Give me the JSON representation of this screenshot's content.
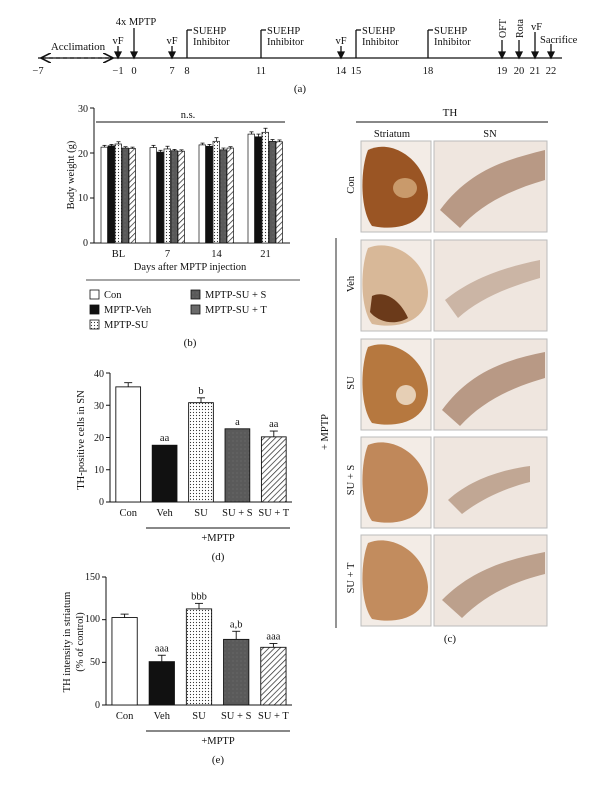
{
  "panel_a": {
    "label": "(a)",
    "acclimation": "Acclimation",
    "ticks": [
      "−7",
      "−1",
      "0",
      "7",
      "8",
      "11",
      "14",
      "15",
      "18",
      "19",
      "20",
      "21",
      "22"
    ],
    "events": {
      "vf1": "vF",
      "mptp": "4x MPTP",
      "vf7": "vF",
      "suehp8_1": "SUEHP",
      "suehp8_2": "Inhibitor",
      "suehp11_1": "SUEHP",
      "suehp11_2": "Inhibitor",
      "vf14": "vF",
      "suehp15_1": "SUEHP",
      "suehp15_2": "Inhibitor",
      "suehp18_1": "SUEHP",
      "suehp18_2": "Inhibitor",
      "oft": "OFT",
      "rota": "Rota",
      "vf21": "vF",
      "sacrifice": "Sacrifice"
    }
  },
  "panel_b": {
    "label": "(b)",
    "legend": [
      "Con",
      "MPTP-Veh",
      "MPTP-SU",
      "MPTP-SU + S",
      "MPTP-SU + T"
    ],
    "significance": "n.s.",
    "yticks": [
      "0",
      "10",
      "20",
      "30"
    ],
    "chart_data": {
      "type": "bar",
      "categories": [
        "BL",
        "7",
        "14",
        "21"
      ],
      "series": [
        {
          "name": "Con",
          "values": [
            21.3,
            21.2,
            21.8,
            24.2
          ],
          "errors": [
            0.4,
            0.5,
            0.4,
            0.5
          ]
        },
        {
          "name": "MPTP-Veh",
          "values": [
            21.6,
            20.2,
            21.5,
            23.6
          ],
          "errors": [
            0.3,
            0.4,
            0.4,
            0.6
          ]
        },
        {
          "name": "MPTP-SU",
          "values": [
            22.0,
            20.9,
            22.6,
            24.6
          ],
          "errors": [
            0.5,
            0.6,
            0.8,
            0.9
          ]
        },
        {
          "name": "MPTP-SU + S",
          "values": [
            21.1,
            20.5,
            20.7,
            22.6
          ],
          "errors": [
            0.3,
            0.3,
            0.4,
            0.4
          ]
        },
        {
          "name": "MPTP-SU + T",
          "values": [
            21.0,
            20.4,
            21.1,
            22.5
          ],
          "errors": [
            0.3,
            0.3,
            0.3,
            0.4
          ]
        }
      ],
      "ylabel": "Body weight (g)",
      "xlabel": "Days after MPTP injection",
      "ylim": [
        0,
        30
      ]
    }
  },
  "panel_c": {
    "label": "(c)",
    "header": "TH",
    "col_labels": [
      "Striatum",
      "SN"
    ],
    "row_labels": [
      "Con",
      "Veh",
      "SU",
      "SU + S",
      "SU + T"
    ],
    "group_label": "+ MPTP"
  },
  "panel_d": {
    "label": "(d)",
    "group_label": "+MPTP",
    "yticks": [
      "0",
      "10",
      "20",
      "30",
      "40"
    ],
    "chart_data": {
      "type": "bar",
      "categories": [
        "Con",
        "Veh",
        "SU",
        "SU + S",
        "SU + T"
      ],
      "values": [
        35.7,
        17.6,
        30.8,
        22.7,
        20.2
      ],
      "errors": [
        1.3,
        0,
        1.5,
        0,
        1.8
      ],
      "annotations": [
        "",
        "aa",
        "b",
        "a",
        "aa"
      ],
      "ylabel": "TH-positive cells in SN",
      "ylim": [
        0,
        40
      ]
    }
  },
  "panel_e": {
    "label": "(e)",
    "group_label": "+MPTP",
    "yticks": [
      "0",
      "50",
      "100",
      "150"
    ],
    "chart_data": {
      "type": "bar",
      "categories": [
        "Con",
        "Veh",
        "SU",
        "SU + S",
        "SU + T"
      ],
      "values": [
        102.5,
        50.8,
        112.6,
        76.9,
        67.6
      ],
      "errors": [
        4.0,
        7.5,
        6.5,
        9.5,
        4.5
      ],
      "annotations": [
        "",
        "aaa",
        "bbb",
        "a,b",
        "aaa"
      ],
      "ylabel": "TH intensity in striatum (% of control)",
      "ylim": [
        0,
        150
      ]
    }
  },
  "colors": {
    "black": "#111111",
    "dark_gray": "#555555",
    "white": "#ffffff",
    "tissue_dark": "#8b4a1e",
    "tissue_light": "#c9955c"
  }
}
